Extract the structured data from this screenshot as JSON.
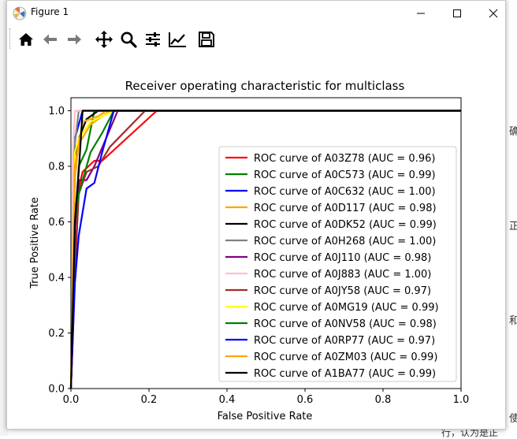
{
  "window": {
    "title": "Figure 1"
  },
  "toolbar": {
    "buttons": [
      "home-icon",
      "back-arrow-icon",
      "forward-arrow-icon",
      "pan-move-icon",
      "zoom-magnifier-icon",
      "subplots-sliders-icon",
      "edit-axis-icon",
      "save-floppy-icon"
    ]
  },
  "background": {
    "right_chars": [
      "确",
      "正",
      "和",
      "使"
    ],
    "bottom_text": "行，认为是正"
  },
  "chart_data": {
    "type": "line",
    "title": "Receiver operating characteristic for multiclass",
    "xlabel": "False Positive Rate",
    "ylabel": "True Positive Rate",
    "xlim": [
      0.0,
      1.0
    ],
    "ylim": [
      0.0,
      1.05
    ],
    "xticks": [
      "0.0",
      "0.2",
      "0.4",
      "0.6",
      "0.8",
      "1.0"
    ],
    "yticks": [
      "0.0",
      "0.2",
      "0.4",
      "0.6",
      "0.8",
      "1.0"
    ],
    "grid": false,
    "legend_position": "lower-right",
    "series": [
      {
        "name": "ROC curve of A03Z78 (AUC = 0.96)",
        "color": "#ff0000",
        "points": [
          [
            0,
            0
          ],
          [
            0.01,
            0.4
          ],
          [
            0.02,
            0.72
          ],
          [
            0.03,
            0.78
          ],
          [
            0.06,
            0.82
          ],
          [
            0.08,
            0.82
          ],
          [
            0.22,
            1.0
          ],
          [
            1,
            1
          ]
        ]
      },
      {
        "name": "ROC curve of A0C573 (AUC = 0.99)",
        "color": "#008000",
        "points": [
          [
            0,
            0
          ],
          [
            0.01,
            0.58
          ],
          [
            0.02,
            0.8
          ],
          [
            0.04,
            0.86
          ],
          [
            0.06,
            1.0
          ],
          [
            1,
            1
          ]
        ]
      },
      {
        "name": "ROC curve of A0C632 (AUC = 1.00)",
        "color": "#0000ff",
        "points": [
          [
            0,
            0
          ],
          [
            0.01,
            0.9
          ],
          [
            0.03,
            1.0
          ],
          [
            1,
            1
          ]
        ]
      },
      {
        "name": "ROC curve of A0D117 (AUC = 0.98)",
        "color": "#ffa500",
        "points": [
          [
            0,
            0
          ],
          [
            0.01,
            0.76
          ],
          [
            0.02,
            0.88
          ],
          [
            0.05,
            0.95
          ],
          [
            0.1,
            1.0
          ],
          [
            1,
            1
          ]
        ]
      },
      {
        "name": "ROC curve of A0DK52 (AUC = 0.99)",
        "color": "#000000",
        "points": [
          [
            0,
            0
          ],
          [
            0.01,
            0.8
          ],
          [
            0.02,
            0.9
          ],
          [
            0.04,
            0.97
          ],
          [
            0.07,
            1.0
          ],
          [
            1,
            1
          ]
        ]
      },
      {
        "name": "ROC curve of A0H268 (AUC = 1.00)",
        "color": "#808080",
        "points": [
          [
            0,
            0
          ],
          [
            0.01,
            0.88
          ],
          [
            0.02,
            1.0
          ],
          [
            1,
            1
          ]
        ]
      },
      {
        "name": "ROC curve of A0J110 (AUC = 0.98)",
        "color": "#800080",
        "points": [
          [
            0,
            0
          ],
          [
            0.01,
            0.42
          ],
          [
            0.02,
            0.75
          ],
          [
            0.04,
            0.75
          ],
          [
            0.06,
            0.8
          ],
          [
            0.09,
            0.9
          ],
          [
            0.12,
            1.0
          ],
          [
            1,
            1
          ]
        ]
      },
      {
        "name": "ROC curve of A0J883 (AUC = 1.00)",
        "color": "#ffc0cb",
        "points": [
          [
            0,
            0
          ],
          [
            0.005,
            0.85
          ],
          [
            0.01,
            1.0
          ],
          [
            1,
            1
          ]
        ]
      },
      {
        "name": "ROC curve of A0JY58 (AUC = 0.97)",
        "color": "#a52a2a",
        "points": [
          [
            0,
            0
          ],
          [
            0.01,
            0.43
          ],
          [
            0.02,
            0.7
          ],
          [
            0.04,
            0.78
          ],
          [
            0.07,
            0.8
          ],
          [
            0.1,
            0.87
          ],
          [
            0.19,
            1.0
          ],
          [
            1,
            1
          ]
        ]
      },
      {
        "name": "ROC curve of A0MG19 (AUC = 0.99)",
        "color": "#ffff00",
        "points": [
          [
            0,
            0
          ],
          [
            0.01,
            0.85
          ],
          [
            0.02,
            0.9
          ],
          [
            0.05,
            0.96
          ],
          [
            0.11,
            1.0
          ],
          [
            1,
            1
          ]
        ]
      },
      {
        "name": "ROC curve of A0NV58 (AUC = 0.98)",
        "color": "#008000",
        "points": [
          [
            0,
            0
          ],
          [
            0.01,
            0.6
          ],
          [
            0.02,
            0.7
          ],
          [
            0.05,
            0.85
          ],
          [
            0.08,
            0.92
          ],
          [
            0.11,
            1.0
          ],
          [
            1,
            1
          ]
        ]
      },
      {
        "name": "ROC curve of A0RP77 (AUC = 0.97)",
        "color": "#0000ff",
        "points": [
          [
            0,
            0
          ],
          [
            0.01,
            0.38
          ],
          [
            0.02,
            0.55
          ],
          [
            0.04,
            0.72
          ],
          [
            0.06,
            0.74
          ],
          [
            0.08,
            0.85
          ],
          [
            0.11,
            1.0
          ],
          [
            1,
            1
          ]
        ]
      },
      {
        "name": "ROC curve of A0ZM03 (AUC = 0.99)",
        "color": "#ffa500",
        "points": [
          [
            0,
            0
          ],
          [
            0.01,
            0.8
          ],
          [
            0.03,
            0.96
          ],
          [
            0.07,
            0.98
          ],
          [
            0.09,
            1.0
          ],
          [
            1,
            1
          ]
        ]
      },
      {
        "name": "ROC curve of A1BA77 (AUC = 0.99)",
        "color": "#000000",
        "points": [
          [
            0,
            0
          ],
          [
            0.01,
            0.6
          ],
          [
            0.02,
            0.78
          ],
          [
            0.03,
            1.0
          ],
          [
            1,
            1
          ]
        ]
      }
    ]
  }
}
